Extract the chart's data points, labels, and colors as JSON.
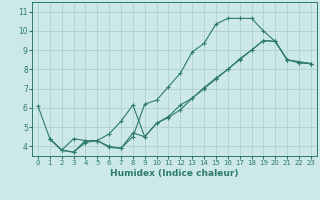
{
  "xlabel": "Humidex (Indice chaleur)",
  "bg_color": "#cce8e8",
  "grid_color": "#aacccc",
  "line_color": "#2d7a6e",
  "xlim": [
    -0.5,
    23.5
  ],
  "ylim": [
    3.5,
    11.5
  ],
  "xticks": [
    0,
    1,
    2,
    3,
    4,
    5,
    6,
    7,
    8,
    9,
    10,
    11,
    12,
    13,
    14,
    15,
    16,
    17,
    18,
    19,
    20,
    21,
    22,
    23
  ],
  "yticks": [
    4,
    5,
    6,
    7,
    8,
    9,
    10,
    11
  ],
  "line1_x": [
    0,
    1,
    2,
    3,
    4,
    5,
    6,
    7,
    8,
    9,
    10,
    11,
    12,
    13,
    14,
    15,
    16,
    17,
    18,
    19,
    20,
    21,
    22,
    23
  ],
  "line1_y": [
    6.1,
    4.4,
    3.8,
    3.7,
    4.3,
    4.3,
    4.0,
    3.9,
    4.5,
    6.2,
    6.4,
    7.1,
    7.8,
    8.9,
    9.35,
    10.35,
    10.65,
    10.65,
    10.65,
    10.0,
    9.45,
    8.5,
    8.4,
    8.3
  ],
  "line2_x": [
    1,
    2,
    3,
    4,
    5,
    6,
    7,
    8,
    9,
    10,
    11,
    12,
    13,
    14,
    15,
    16,
    17,
    18,
    19,
    20,
    21,
    22,
    23
  ],
  "line2_y": [
    4.4,
    3.8,
    4.4,
    4.3,
    4.3,
    4.65,
    5.3,
    6.15,
    4.5,
    5.2,
    5.55,
    6.15,
    6.5,
    7.05,
    7.55,
    8.0,
    8.55,
    9.0,
    9.5,
    9.45,
    8.5,
    8.35,
    8.3
  ],
  "line3_x": [
    1,
    2,
    3,
    4,
    5,
    6,
    7,
    8,
    9,
    10,
    11,
    12,
    13,
    14,
    15,
    16,
    17,
    18,
    19,
    20,
    21,
    22,
    23
  ],
  "line3_y": [
    4.4,
    3.8,
    3.7,
    4.2,
    4.3,
    3.95,
    3.9,
    4.7,
    4.5,
    5.2,
    5.5,
    5.9,
    6.5,
    7.0,
    7.5,
    8.0,
    8.5,
    9.0,
    9.5,
    9.45,
    8.5,
    8.35,
    8.3
  ]
}
